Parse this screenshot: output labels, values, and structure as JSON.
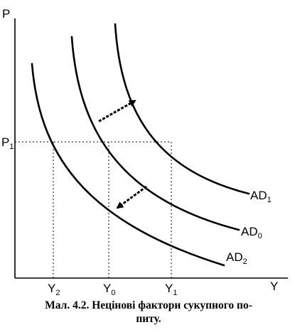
{
  "figure": {
    "axes": {
      "y_label": "P",
      "x_label": "Y",
      "price_label_base": "P",
      "price_label_sub": "1"
    },
    "curves": [
      {
        "id": "AD2",
        "label_base": "AD",
        "label_sub": "2"
      },
      {
        "id": "AD0",
        "label_base": "AD",
        "label_sub": "0"
      },
      {
        "id": "AD1",
        "label_base": "AD",
        "label_sub": "1"
      }
    ],
    "x_ticks": [
      {
        "base": "Y",
        "sub": "2"
      },
      {
        "base": "Y",
        "sub": "0"
      },
      {
        "base": "Y",
        "sub": "1"
      }
    ],
    "shifts": [
      {
        "direction": "right",
        "from": "AD0",
        "to": "AD1"
      },
      {
        "direction": "left",
        "from": "AD0",
        "to": "AD2"
      }
    ],
    "colors": {
      "ink": "#000000",
      "background": "#ffffff"
    }
  },
  "caption": {
    "line1": "Мал. 4.2. Нецінові фактори сукупного по-",
    "line2": "питу."
  }
}
